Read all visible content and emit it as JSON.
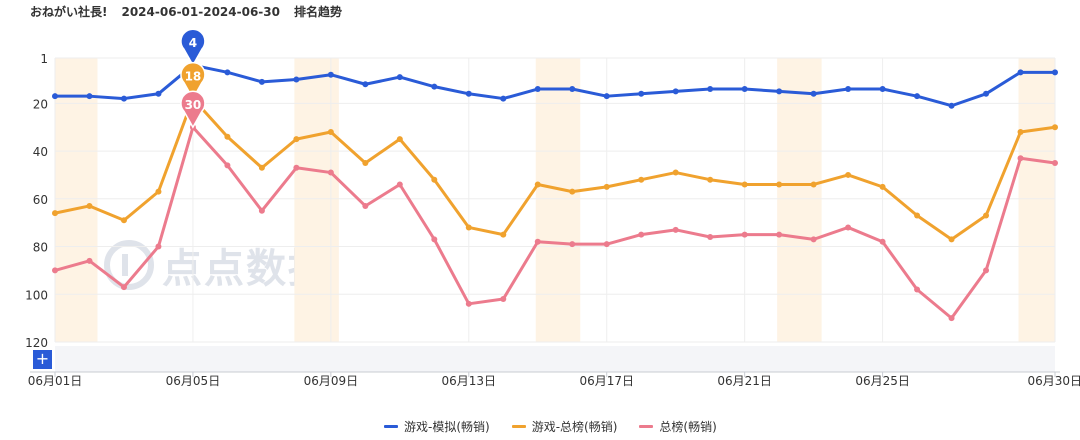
{
  "header": {
    "app_name": "おねがい社長!",
    "date_range": "2024-06-01-2024-06-30",
    "chart_label": "排名趋势"
  },
  "watermark": {
    "text": "点点数据"
  },
  "colors": {
    "series_blue": "#2a5bd7",
    "series_orange": "#f0a22e",
    "series_pink": "#ec7b8d",
    "highlight_band": "#fef3e4",
    "grid": "#eeeeee"
  },
  "chart_data": {
    "type": "line",
    "y_inverted": true,
    "ylim": [
      1,
      120
    ],
    "yticks": [
      1,
      20,
      40,
      60,
      80,
      100,
      120
    ],
    "x": [
      "06月01日",
      "06月02日",
      "06月03日",
      "06月04日",
      "06月05日",
      "06月06日",
      "06月07日",
      "06月08日",
      "06月09日",
      "06月10日",
      "06月11日",
      "06月12日",
      "06月13日",
      "06月14日",
      "06月15日",
      "06月16日",
      "06月17日",
      "06月18日",
      "06月19日",
      "06月20日",
      "06月21日",
      "06月22日",
      "06月23日",
      "06月24日",
      "06月25日",
      "06月26日",
      "06月27日",
      "06月28日",
      "06月29日",
      "06月30日"
    ],
    "xticks": [
      "06月01日",
      "06月05日",
      "06月09日",
      "06月13日",
      "06月17日",
      "06月21日",
      "06月25日",
      "06月30日"
    ],
    "highlight_ranges": [
      [
        "06月01日",
        "06月02日"
      ],
      [
        "06月08日",
        "06月09日"
      ],
      [
        "06月15日",
        "06月16日"
      ],
      [
        "06月22日",
        "06月23日"
      ],
      [
        "06月29日",
        "06月30日"
      ]
    ],
    "series": [
      {
        "name": "游戏-模拟(畅销)",
        "color": "#2a5bd7",
        "values": [
          17,
          17,
          18,
          16,
          4,
          7,
          11,
          10,
          8,
          12,
          9,
          13,
          16,
          18,
          14,
          14,
          17,
          16,
          15,
          14,
          14,
          15,
          16,
          14,
          14,
          17,
          21,
          16,
          7,
          7
        ]
      },
      {
        "name": "游戏-总榜(畅销)",
        "color": "#f0a22e",
        "values": [
          66,
          63,
          69,
          57,
          18,
          34,
          47,
          35,
          32,
          45,
          35,
          52,
          72,
          75,
          54,
          57,
          55,
          52,
          49,
          52,
          54,
          54,
          54,
          50,
          55,
          67,
          77,
          67,
          32,
          30
        ]
      },
      {
        "name": "总榜(畅销)",
        "color": "#ec7b8d",
        "values": [
          90,
          86,
          97,
          80,
          30,
          46,
          65,
          47,
          49,
          63,
          54,
          77,
          104,
          102,
          78,
          79,
          79,
          75,
          73,
          76,
          75,
          75,
          77,
          72,
          78,
          98,
          110,
          90,
          43,
          45
        ]
      }
    ],
    "annotations": [
      {
        "x": "06月05日",
        "series": "游戏-模拟(畅销)",
        "label": "4"
      },
      {
        "x": "06月05日",
        "series": "游戏-总榜(畅销)",
        "label": "18"
      },
      {
        "x": "06月05日",
        "series": "总榜(畅销)",
        "label": "30"
      }
    ],
    "legend_position": "bottom-center",
    "grid": true
  }
}
